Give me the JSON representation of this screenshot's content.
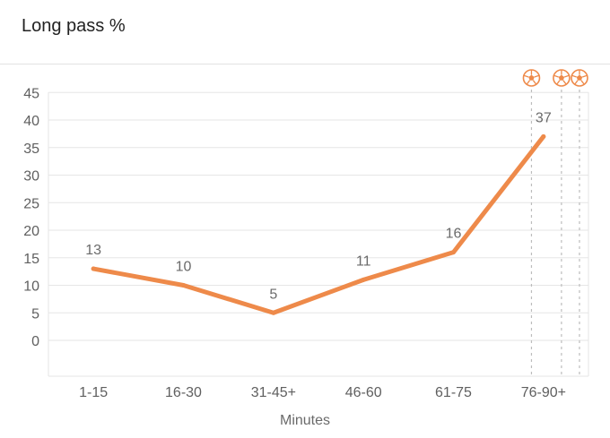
{
  "colors": {
    "line": "#ee8a4a",
    "grid": "#e6e6e6",
    "goal_marker": "#bcbcbc"
  },
  "chart_data": {
    "type": "line",
    "title": "Long pass %",
    "xlabel": "Minutes",
    "ylabel": "",
    "categories": [
      "1-15",
      "16-30",
      "31-45+",
      "46-60",
      "61-75",
      "76-90+"
    ],
    "series": [
      {
        "values": [
          13,
          10,
          5,
          11,
          16,
          37
        ]
      }
    ],
    "ylim": [
      0,
      45
    ],
    "yticks": [
      0,
      5,
      10,
      15,
      20,
      25,
      30,
      35,
      40,
      45
    ],
    "grid": true,
    "goal_markers": [
      {
        "minute": 81,
        "icon": "soccer-ball-icon"
      },
      {
        "minute": 86,
        "icon": "soccer-ball-icon"
      },
      {
        "minute": 89,
        "icon": "soccer-ball-icon"
      }
    ]
  }
}
